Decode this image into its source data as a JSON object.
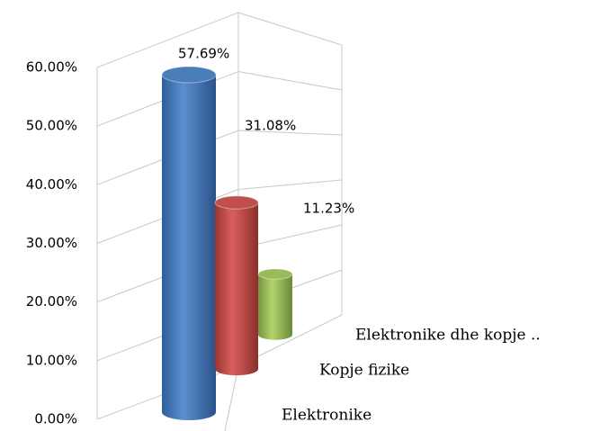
{
  "chart_data": {
    "type": "bar3d",
    "categories": [
      "Elektronike",
      "Kopje fizike",
      "Elektronike  dhe kopje .."
    ],
    "values": [
      57.69,
      31.08,
      11.23
    ],
    "value_labels": [
      "57.69%",
      "31.08%",
      "11.23%"
    ],
    "colors": [
      "#4a7ebb",
      "#c0504d",
      "#9bbb59"
    ],
    "ylim": [
      0,
      60
    ],
    "yticks": [
      {
        "value": 0,
        "label": "0.00%"
      },
      {
        "value": 10,
        "label": "10.00%"
      },
      {
        "value": 20,
        "label": "20.00%"
      },
      {
        "value": 30,
        "label": "30.00%"
      },
      {
        "value": 40,
        "label": "40.00%"
      },
      {
        "value": 50,
        "label": "50.00%"
      },
      {
        "value": 60,
        "label": "60.00%"
      }
    ],
    "grid": true
  }
}
